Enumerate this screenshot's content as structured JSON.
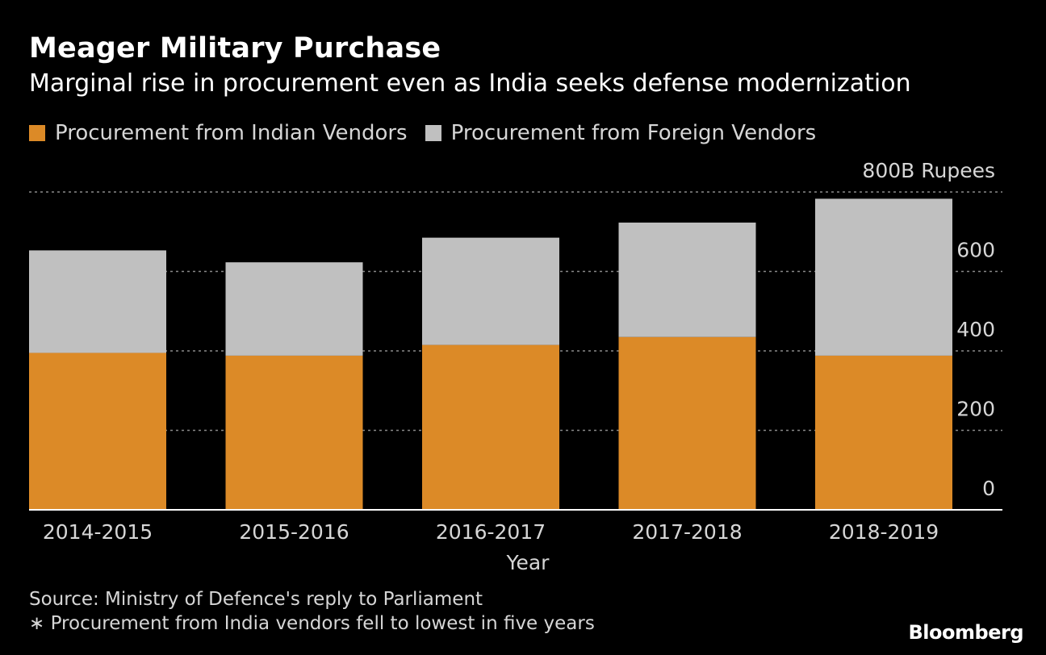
{
  "title": "Meager Military Purchase",
  "subtitle": "Marginal rise in procurement even as India seeks defense modernization",
  "legend": [
    {
      "label": "Procurement from Indian Vendors",
      "color": "#dc8a27"
    },
    {
      "label": "Procurement from Foreign Vendors",
      "color": "#c0c0c0"
    }
  ],
  "footer": {
    "source": "Source: Ministry of Defence's reply to Parliament",
    "note": "∗ Procurement from India vendors fell to lowest in five years",
    "brand": "Bloomberg"
  },
  "chart_data": {
    "type": "bar",
    "stacked": true,
    "categories": [
      "2014-2015",
      "2015-2016",
      "2016-2017",
      "2017-2018",
      "2018-2019"
    ],
    "series": [
      {
        "name": "Procurement from Indian Vendors",
        "values": [
          395,
          388,
          415,
          435,
          388
        ],
        "color": "#dc8a27"
      },
      {
        "name": "Procurement from Foreign Vendors",
        "values": [
          258,
          235,
          270,
          288,
          395
        ],
        "color": "#c0c0c0"
      }
    ],
    "xlabel": "Year",
    "ylabel": "",
    "ylim": [
      0,
      800
    ],
    "yticks": [
      {
        "value": 0,
        "label": "0"
      },
      {
        "value": 200,
        "label": "200"
      },
      {
        "value": 400,
        "label": "400"
      },
      {
        "value": 600,
        "label": "600"
      },
      {
        "value": 800,
        "label": "800B Rupees"
      }
    ],
    "axis_position": "right",
    "grid": true,
    "legend_position": "top-left"
  }
}
